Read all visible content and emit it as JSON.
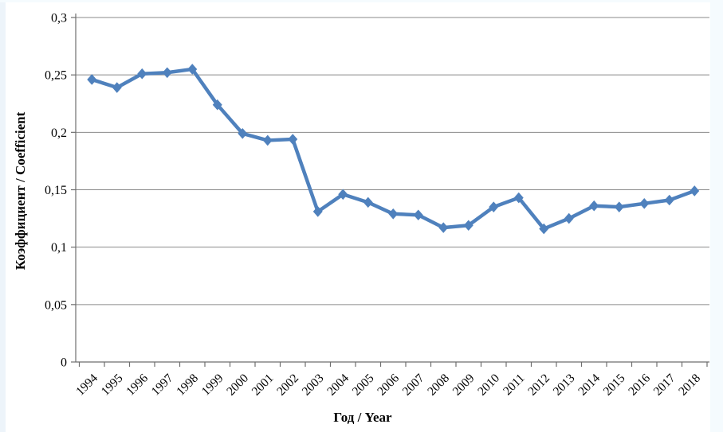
{
  "chart_data": {
    "type": "line",
    "title": "",
    "xlabel": "Год / Year",
    "ylabel": "Коэффициент / Coefficient",
    "categories": [
      "1994",
      "1995",
      "1996",
      "1997",
      "1998",
      "1999",
      "2000",
      "2001",
      "2002",
      "2003",
      "2004",
      "2005",
      "2006",
      "2007",
      "2008",
      "2009",
      "2010",
      "2011",
      "2012",
      "2013",
      "2014",
      "2015",
      "2016",
      "2017",
      "2018"
    ],
    "values": [
      0.246,
      0.239,
      0.251,
      0.252,
      0.255,
      0.224,
      0.199,
      0.193,
      0.194,
      0.131,
      0.146,
      0.139,
      0.129,
      0.128,
      0.117,
      0.119,
      0.135,
      0.143,
      0.116,
      0.125,
      0.136,
      0.135,
      0.138,
      0.141,
      0.149
    ],
    "ylim": [
      0,
      0.3
    ],
    "yticks": [
      {
        "value": 0,
        "label": "0"
      },
      {
        "value": 0.05,
        "label": "0,05"
      },
      {
        "value": 0.1,
        "label": "0,1"
      },
      {
        "value": 0.15,
        "label": "0,15"
      },
      {
        "value": 0.2,
        "label": "0,2"
      },
      {
        "value": 0.25,
        "label": "0,25"
      },
      {
        "value": 0.3,
        "label": "0,3"
      }
    ],
    "grid": "horizontal",
    "legend": "none",
    "marker": "diamond",
    "colors": {
      "line": "#4F81BD",
      "marker": "#4F81BD",
      "gridline": "#8a8a8a",
      "axis": "#6e6e6e",
      "text": "#000000",
      "background": "#ffffff",
      "page_edge_left": "#edf4fa",
      "page_edge_right": "#f5fbfe"
    }
  }
}
